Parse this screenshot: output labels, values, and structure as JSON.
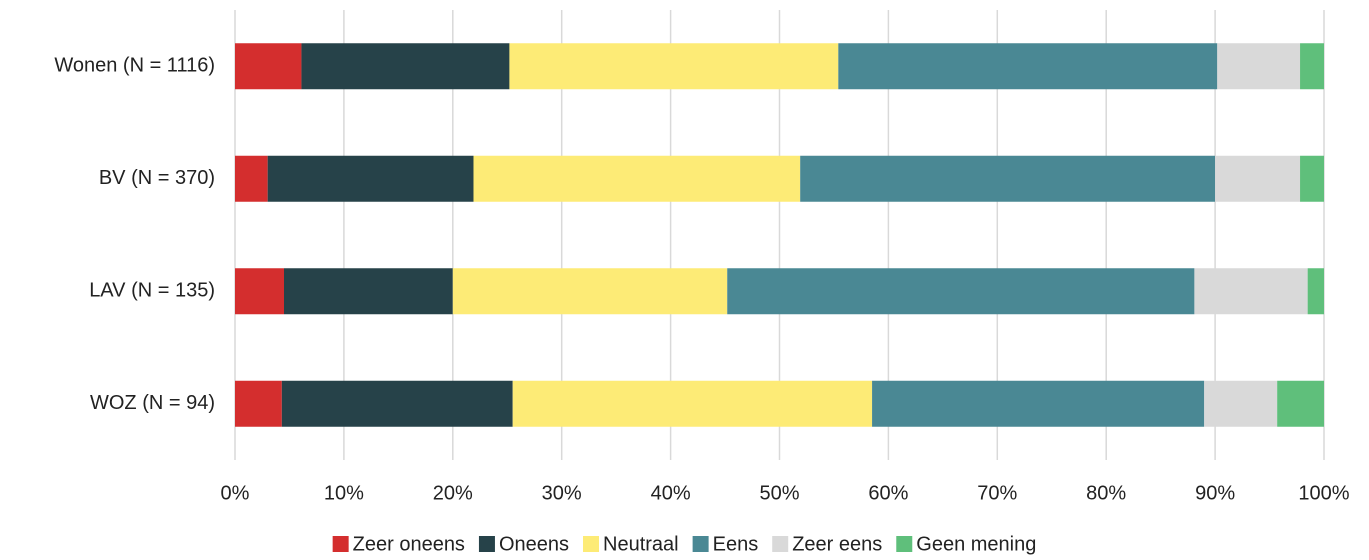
{
  "chart_data": {
    "type": "stacked-bar-horizontal",
    "categories": [
      "Wonen (N = 1116)",
      "BV (N = 370)",
      "LAV (N = 135)",
      "WOZ (N = 94)"
    ],
    "series": [
      {
        "name": "Zeer oneens",
        "color": "#d42e2e",
        "values": [
          6.1,
          3.0,
          4.5,
          4.3
        ]
      },
      {
        "name": "Oneens",
        "color": "#264249",
        "values": [
          19.1,
          18.9,
          15.5,
          21.2
        ]
      },
      {
        "name": "Neutraal",
        "color": "#fdeb76",
        "values": [
          30.2,
          30.0,
          25.2,
          33.0
        ]
      },
      {
        "name": "Eens",
        "color": "#4a8894",
        "values": [
          34.8,
          38.1,
          42.9,
          30.5
        ]
      },
      {
        "name": "Zeer eens",
        "color": "#d9d9d9",
        "values": [
          7.6,
          7.8,
          10.4,
          6.7
        ]
      },
      {
        "name": "Geen mening",
        "color": "#5fbf7b",
        "values": [
          2.2,
          2.2,
          1.5,
          4.3
        ]
      }
    ],
    "xlim": [
      0,
      100
    ],
    "xticks": [
      {
        "value": 0,
        "label": "0%"
      },
      {
        "value": 10,
        "label": "10%"
      },
      {
        "value": 20,
        "label": "20%"
      },
      {
        "value": 30,
        "label": "30%"
      },
      {
        "value": 40,
        "label": "40%"
      },
      {
        "value": 50,
        "label": "50%"
      },
      {
        "value": 60,
        "label": "60%"
      },
      {
        "value": 70,
        "label": "70%"
      },
      {
        "value": 80,
        "label": "80%"
      },
      {
        "value": 90,
        "label": "90%"
      },
      {
        "value": 100,
        "label": "100%"
      }
    ],
    "grid": true,
    "legend": "bottom"
  }
}
